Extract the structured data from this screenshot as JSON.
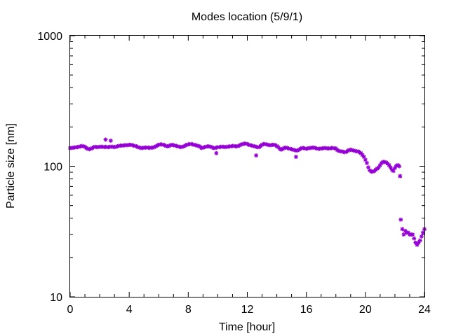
{
  "chart_data": {
    "type": "scatter",
    "title": "Modes location (5/9/1)",
    "xlabel": "Time [hour]",
    "ylabel": "Particle size [nm]",
    "xlim": [
      0,
      24
    ],
    "ylim": [
      10,
      1000
    ],
    "yscale": "log",
    "grid": false,
    "x_ticks": [
      0,
      4,
      8,
      12,
      16,
      20,
      24
    ],
    "x_tick_labels": [
      "0",
      "4",
      "8",
      "12",
      "16",
      "20",
      "24"
    ],
    "y_ticks": [
      10,
      100,
      1000
    ],
    "y_tick_labels": [
      "10",
      "100",
      "1000"
    ],
    "marker": "asterisk",
    "color": "#9400d3",
    "series": [
      {
        "x": [
          0.0,
          0.1,
          0.2,
          0.3,
          0.4,
          0.5,
          0.6,
          0.7,
          0.8,
          0.9,
          1.0,
          1.1,
          1.2,
          1.3,
          1.4,
          1.5,
          1.6,
          1.7,
          1.8,
          1.9,
          2.0,
          2.1,
          2.2,
          2.3,
          2.4,
          2.5,
          2.6,
          2.7,
          2.8,
          2.9,
          3.0,
          3.1,
          3.2,
          3.3,
          3.4,
          3.5,
          3.6,
          3.7,
          3.8,
          3.9,
          4.0,
          4.1,
          4.2,
          4.3,
          4.4,
          4.5,
          4.6,
          4.7,
          4.8,
          4.9,
          5.0,
          5.1,
          5.2,
          5.3,
          5.4,
          5.5,
          5.6,
          5.7,
          5.8,
          5.9,
          6.0,
          6.1,
          6.2,
          6.3,
          6.4,
          6.5,
          6.6,
          6.7,
          6.8,
          6.9,
          7.0,
          7.1,
          7.2,
          7.3,
          7.4,
          7.5,
          7.6,
          7.7,
          7.8,
          7.9,
          8.0,
          8.1,
          8.2,
          8.3,
          8.4,
          8.5,
          8.6,
          8.7,
          8.8,
          8.9,
          9.0,
          9.1,
          9.2,
          9.3,
          9.4,
          9.5,
          9.6,
          9.7,
          9.8,
          9.9,
          10.0,
          10.1,
          10.2,
          10.3,
          10.4,
          10.5,
          10.6,
          10.7,
          10.8,
          10.9,
          11.0,
          11.1,
          11.2,
          11.3,
          11.4,
          11.5,
          11.6,
          11.7,
          11.8,
          11.9,
          12.0,
          12.1,
          12.2,
          12.3,
          12.4,
          12.5,
          12.6,
          12.7,
          12.8,
          12.9,
          13.0,
          13.1,
          13.2,
          13.3,
          13.4,
          13.5,
          13.6,
          13.7,
          13.8,
          13.9,
          14.0,
          14.1,
          14.2,
          14.3,
          14.4,
          14.5,
          14.6,
          14.7,
          14.8,
          14.9,
          15.0,
          15.1,
          15.2,
          15.3,
          15.4,
          15.5,
          15.6,
          15.7,
          15.8,
          15.9,
          16.0,
          16.1,
          16.2,
          16.3,
          16.4,
          16.5,
          16.6,
          16.7,
          16.8,
          16.9,
          17.0,
          17.1,
          17.2,
          17.3,
          17.4,
          17.5,
          17.6,
          17.7,
          17.8,
          17.9,
          18.0,
          18.1,
          18.2,
          18.3,
          18.4,
          18.5,
          18.6,
          18.7,
          18.8,
          18.9,
          19.0,
          19.1,
          19.2,
          19.3,
          19.4,
          19.5,
          19.6,
          19.7,
          19.8,
          19.9,
          20.0,
          20.1,
          20.2,
          20.3,
          20.4,
          20.5,
          20.6,
          20.7,
          20.8,
          20.9,
          21.0,
          21.1,
          21.2,
          21.3,
          21.4,
          21.5,
          21.6,
          21.7,
          21.8,
          21.9,
          22.0,
          22.1,
          22.2,
          22.3,
          22.35,
          22.4,
          22.5,
          22.6,
          22.7,
          22.8,
          22.9,
          23.0,
          23.1,
          23.2,
          23.3,
          23.4,
          23.5,
          23.6,
          23.7,
          23.8,
          23.9,
          24.0,
          2.4,
          2.75,
          9.9,
          12.6,
          15.3,
          22.35
        ],
        "y": [
          138,
          138,
          139,
          139,
          140,
          140,
          141,
          142,
          143,
          142,
          141,
          138,
          136,
          135,
          136,
          138,
          140,
          141,
          140,
          140,
          141,
          141,
          141,
          140,
          141,
          140,
          140,
          141,
          141,
          141,
          140,
          141,
          142,
          143,
          144,
          144,
          144,
          145,
          145,
          145,
          146,
          146,
          145,
          144,
          143,
          142,
          140,
          139,
          138,
          138,
          139,
          139,
          139,
          139,
          138,
          139,
          139,
          140,
          142,
          144,
          146,
          147,
          147,
          146,
          145,
          143,
          142,
          143,
          145,
          146,
          145,
          144,
          143,
          142,
          141,
          140,
          141,
          142,
          144,
          146,
          147,
          148,
          148,
          147,
          146,
          145,
          144,
          143,
          141,
          138,
          139,
          140,
          141,
          142,
          142,
          141,
          140,
          138,
          138,
          139,
          140,
          140,
          141,
          141,
          141,
          140,
          141,
          141,
          142,
          142,
          143,
          143,
          142,
          142,
          143,
          145,
          147,
          148,
          149,
          149,
          148,
          146,
          145,
          144,
          143,
          142,
          141,
          140,
          140,
          143,
          146,
          148,
          148,
          147,
          146,
          145,
          145,
          146,
          146,
          145,
          143,
          140,
          136,
          134,
          136,
          138,
          139,
          138,
          137,
          136,
          135,
          134,
          133,
          132,
          132,
          134,
          136,
          138,
          138,
          137,
          136,
          137,
          138,
          138,
          139,
          139,
          138,
          137,
          136,
          136,
          137,
          137,
          138,
          138,
          137,
          137,
          137,
          138,
          138,
          137,
          137,
          133,
          131,
          130,
          130,
          129,
          128,
          129,
          131,
          133,
          134,
          133,
          132,
          131,
          130,
          130,
          128,
          126,
          122,
          118,
          112,
          106,
          98,
          93,
          91,
          91,
          92,
          94,
          96,
          98,
          102,
          106,
          108,
          108,
          107,
          105,
          102,
          98,
          94,
          92,
          97,
          101,
          102,
          100,
          84,
          39,
          33,
          30,
          32,
          31,
          31,
          30,
          30,
          30,
          28,
          26,
          25,
          26,
          27,
          29,
          31,
          33,
          160,
          157,
          126,
          121,
          118,
          84
        ]
      }
    ]
  }
}
